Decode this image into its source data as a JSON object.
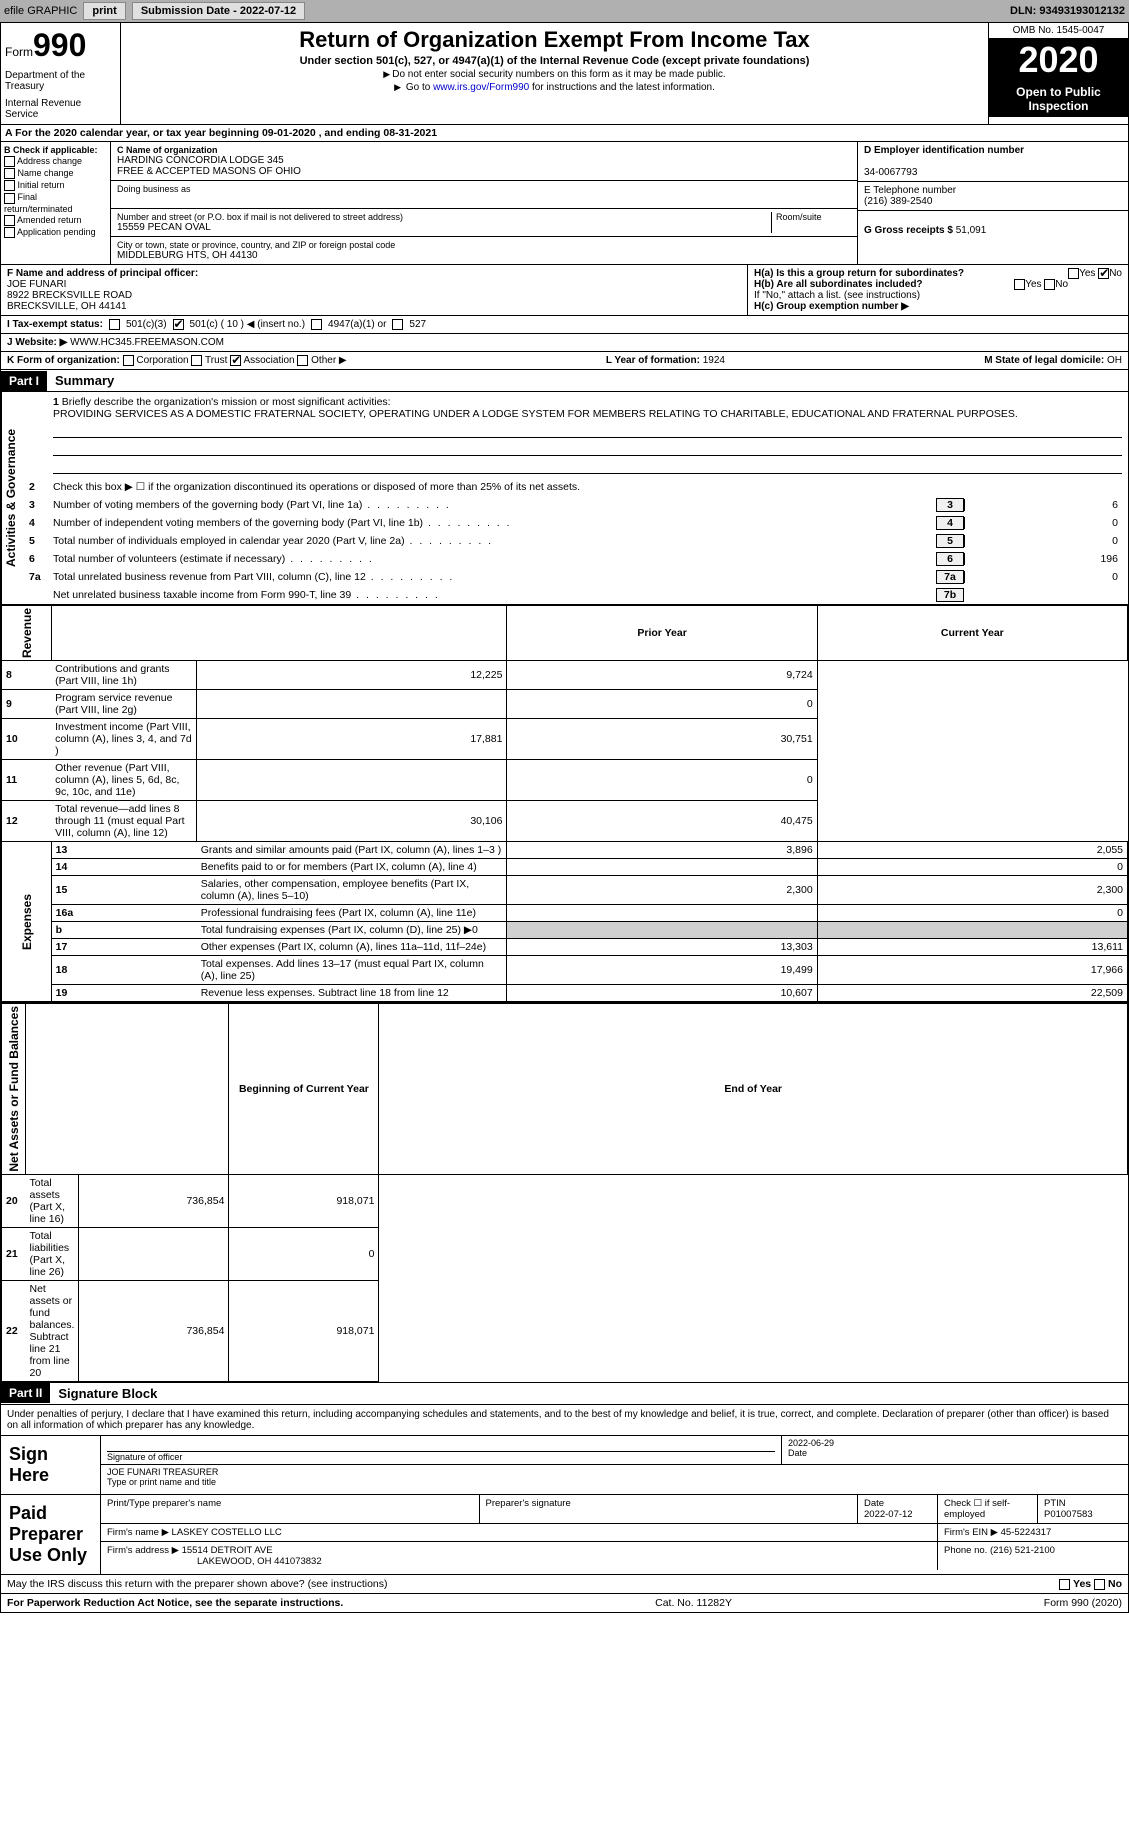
{
  "toolbar": {
    "efile": "efile GRAPHIC",
    "print": "print",
    "sub_label": "Submission Date - ",
    "sub_date": "2022-07-12",
    "dln_label": "DLN: ",
    "dln": "93493193012132"
  },
  "header": {
    "form_word": "Form",
    "form_num": "990",
    "dept1": "Department of the Treasury",
    "dept2": "Internal Revenue Service",
    "title": "Return of Organization Exempt From Income Tax",
    "sub": "Under section 501(c), 527, or 4947(a)(1) of the Internal Revenue Code (except private foundations)",
    "note1": "Do not enter social security numbers on this form as it may be made public.",
    "note2_pre": "Go to ",
    "note2_link": "www.irs.gov/Form990",
    "note2_post": " for instructions and the latest information.",
    "omb": "OMB No. 1545-0047",
    "year": "2020",
    "inspect1": "Open to Public",
    "inspect2": "Inspection"
  },
  "period": "For the 2020 calendar year, or tax year beginning 09-01-2020    , and ending 08-31-2021",
  "colB": {
    "hdr": "B Check if applicable:",
    "o1": "Address change",
    "o2": "Name change",
    "o3": "Initial return",
    "o4": "Final return/terminated",
    "o5": "Amended return",
    "o6": "Application pending"
  },
  "colC": {
    "name_lbl": "C Name of organization",
    "name1": "HARDING CONCORDIA LODGE 345",
    "name2": "FREE & ACCEPTED MASONS OF OHIO",
    "dba_lbl": "Doing business as",
    "street_lbl": "Number and street (or P.O. box if mail is not delivered to street address)",
    "room_lbl": "Room/suite",
    "street": "15559 PECAN OVAL",
    "city_lbl": "City or town, state or province, country, and ZIP or foreign postal code",
    "city": "MIDDLEBURG HTS, OH  44130"
  },
  "colD": {
    "ein_lbl": "D Employer identification number",
    "ein": "34-0067793",
    "tel_lbl": "E Telephone number",
    "tel": "(216) 389-2540",
    "gross_lbl": "G Gross receipts $ ",
    "gross": "51,091"
  },
  "officer": {
    "lbl": "F  Name and address of principal officer:",
    "name": "JOE FUNARI",
    "addr1": "8922 BRECKSVILLE ROAD",
    "addr2": "BRECKSVILLE, OH  44141",
    "ha": "H(a)  Is this a group return for subordinates?",
    "hb": "H(b)  Are all subordinates included?",
    "hb_note": "If \"No,\" attach a list. (see instructions)",
    "hc": "H(c)  Group exemption number ▶",
    "yes": "Yes",
    "no": "No"
  },
  "status": {
    "lbl": "I    Tax-exempt status:",
    "o1": "501(c)(3)",
    "o2": "501(c) ( 10 ) ◀ (insert no.)",
    "o3": "4947(a)(1) or",
    "o4": "527"
  },
  "website": {
    "lbl": "J   Website: ▶",
    "val": "WWW.HC345.FREEMASON.COM"
  },
  "korg": {
    "lbl": "K Form of organization:",
    "o1": "Corporation",
    "o2": "Trust",
    "o3": "Association",
    "o4": "Other ▶",
    "year_lbl": "L Year of formation: ",
    "year": "1924",
    "dom_lbl": "M State of legal domicile: ",
    "dom": "OH"
  },
  "part1": {
    "hdr": "Part I",
    "title": "Summary",
    "q1": "Briefly describe the organization's mission or most significant activities:",
    "mission": "PROVIDING SERVICES AS A DOMESTIC FRATERNAL SOCIETY, OPERATING UNDER A LODGE SYSTEM FOR MEMBERS RELATING TO CHARITABLE, EDUCATIONAL AND FRATERNAL PURPOSES.",
    "q2": "Check this box ▶ ☐  if the organization discontinued its operations or disposed of more than 25% of its net assets.",
    "l3": "Number of voting members of the governing body (Part VI, line 1a)",
    "l4": "Number of independent voting members of the governing body (Part VI, line 1b)",
    "l5": "Total number of individuals employed in calendar year 2020 (Part V, line 2a)",
    "l6": "Total number of volunteers (estimate if necessary)",
    "l7a": "Total unrelated business revenue from Part VIII, column (C), line 12",
    "l7b": "Net unrelated business taxable income from Form 990-T, line 39",
    "v3": "6",
    "v4": "0",
    "v5": "0",
    "v6": "196",
    "v7a": "0",
    "v7b": ""
  },
  "side": {
    "gov": "Activities & Governance",
    "rev": "Revenue",
    "exp": "Expenses",
    "net": "Net Assets or Fund Balances"
  },
  "tbl": {
    "prior": "Prior Year",
    "current": "Current Year",
    "begin": "Beginning of Current Year",
    "end": "End of Year",
    "rows": [
      {
        "n": "8",
        "d": "Contributions and grants (Part VIII, line 1h)",
        "p": "12,225",
        "c": "9,724"
      },
      {
        "n": "9",
        "d": "Program service revenue (Part VIII, line 2g)",
        "p": "",
        "c": "0"
      },
      {
        "n": "10",
        "d": "Investment income (Part VIII, column (A), lines 3, 4, and 7d )",
        "p": "17,881",
        "c": "30,751"
      },
      {
        "n": "11",
        "d": "Other revenue (Part VIII, column (A), lines 5, 6d, 8c, 9c, 10c, and 11e)",
        "p": "",
        "c": "0"
      },
      {
        "n": "12",
        "d": "Total revenue—add lines 8 through 11 (must equal Part VIII, column (A), line 12)",
        "p": "30,106",
        "c": "40,475"
      },
      {
        "n": "13",
        "d": "Grants and similar amounts paid (Part IX, column (A), lines 1–3 )",
        "p": "3,896",
        "c": "2,055"
      },
      {
        "n": "14",
        "d": "Benefits paid to or for members (Part IX, column (A), line 4)",
        "p": "",
        "c": "0"
      },
      {
        "n": "15",
        "d": "Salaries, other compensation, employee benefits (Part IX, column (A), lines 5–10)",
        "p": "2,300",
        "c": "2,300"
      },
      {
        "n": "16a",
        "d": "Professional fundraising fees (Part IX, column (A), line 11e)",
        "p": "",
        "c": "0"
      },
      {
        "n": "b",
        "d": "Total fundraising expenses (Part IX, column (D), line 25) ▶0",
        "p": "SHADE",
        "c": "SHADE"
      },
      {
        "n": "17",
        "d": "Other expenses (Part IX, column (A), lines 11a–11d, 11f–24e)",
        "p": "13,303",
        "c": "13,611"
      },
      {
        "n": "18",
        "d": "Total expenses. Add lines 13–17 (must equal Part IX, column (A), line 25)",
        "p": "19,499",
        "c": "17,966"
      },
      {
        "n": "19",
        "d": "Revenue less expenses. Subtract line 18 from line 12",
        "p": "10,607",
        "c": "22,509"
      }
    ],
    "net_rows": [
      {
        "n": "20",
        "d": "Total assets (Part X, line 16)",
        "p": "736,854",
        "c": "918,071"
      },
      {
        "n": "21",
        "d": "Total liabilities (Part X, line 26)",
        "p": "",
        "c": "0"
      },
      {
        "n": "22",
        "d": "Net assets or fund balances. Subtract line 21 from line 20",
        "p": "736,854",
        "c": "918,071"
      }
    ]
  },
  "part2": {
    "hdr": "Part II",
    "title": "Signature Block",
    "decl": "Under penalties of perjury, I declare that I have examined this return, including accompanying schedules and statements, and to the best of my knowledge and belief, it is true, correct, and complete. Declaration of preparer (other than officer) is based on all information of which preparer has any knowledge."
  },
  "sign": {
    "lbl": "Sign Here",
    "sig_lbl": "Signature of officer",
    "date_lbl": "Date",
    "date": "2022-06-29",
    "name": "JOE FUNARI  TREASURER",
    "name_lbl": "Type or print name and title"
  },
  "prep": {
    "lbl": "Paid Preparer Use Only",
    "c1": "Print/Type preparer's name",
    "c2": "Preparer's signature",
    "c3": "Date",
    "date": "2022-07-12",
    "c4": "Check ☐ if self-employed",
    "c5": "PTIN",
    "ptin": "P01007583",
    "firm_lbl": "Firm's name     ▶",
    "firm": "LASKEY COSTELLO LLC",
    "ein_lbl": "Firm's EIN ▶",
    "ein": "45-5224317",
    "addr_lbl": "Firm's address ▶",
    "addr1": "15514 DETROIT AVE",
    "addr2": "LAKEWOOD, OH  441073832",
    "phone_lbl": "Phone no. ",
    "phone": "(216) 521-2100"
  },
  "discuss": "May the IRS discuss this return with the preparer shown above? (see instructions)",
  "footer": {
    "left": "For Paperwork Reduction Act Notice, see the separate instructions.",
    "mid": "Cat. No. 11282Y",
    "right": "Form 990 (2020)"
  }
}
